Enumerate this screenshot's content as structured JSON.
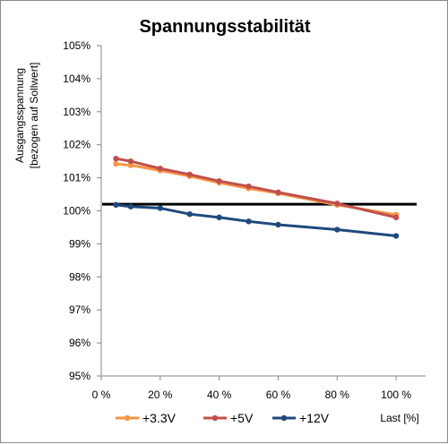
{
  "chart_data": {
    "type": "line",
    "title": "Spannungsstabilität",
    "xlabel": "Last [%]",
    "ylabel_line1": "Ausgangsspannung",
    "ylabel_line2": "[bezogen auf Sollwert]",
    "xlim": [
      0,
      110
    ],
    "ylim": [
      95,
      105
    ],
    "xticks": [
      0,
      20,
      40,
      60,
      80,
      100
    ],
    "xtick_labels": [
      "0 %",
      "20 %",
      "40 %",
      "60 %",
      "80 %",
      "100 %"
    ],
    "yticks": [
      95,
      96,
      97,
      98,
      99,
      100,
      101,
      102,
      103,
      104,
      105
    ],
    "ytick_labels": [
      "95%",
      "96%",
      "97%",
      "98%",
      "99%",
      "100%",
      "101%",
      "102%",
      "103%",
      "104%",
      "105%"
    ],
    "grid": false,
    "legend_position": "bottom",
    "reference_line": {
      "y": 100.2,
      "x_range": [
        0,
        110
      ],
      "color": "#000000"
    },
    "series": [
      {
        "name": "+3.3V",
        "color": "#f79646",
        "x": [
          5,
          10,
          20,
          30,
          40,
          50,
          60,
          80,
          100
        ],
        "y": [
          101.42,
          101.38,
          101.22,
          101.05,
          100.85,
          100.68,
          100.53,
          100.18,
          99.88
        ]
      },
      {
        "name": "+5V",
        "color": "#c0504d",
        "x": [
          5,
          10,
          20,
          30,
          40,
          50,
          60,
          80,
          100
        ],
        "y": [
          101.58,
          101.5,
          101.28,
          101.1,
          100.9,
          100.74,
          100.56,
          100.22,
          99.8
        ]
      },
      {
        "name": "+12V",
        "color": "#1f497d",
        "x": [
          5,
          10,
          20,
          30,
          40,
          50,
          60,
          80,
          100
        ],
        "y": [
          100.18,
          100.13,
          100.08,
          99.9,
          99.8,
          99.68,
          99.58,
          99.43,
          99.24
        ]
      }
    ]
  }
}
